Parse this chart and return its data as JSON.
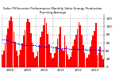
{
  "title": "Solar PV/Inverter Performance Monthly Solar Energy Production Running Average",
  "bar_color": "#ff0000",
  "avg_color": "#0000ff",
  "background_color": "#ffffff",
  "grid_color": "#b0b0b0",
  "values": [
    32,
    40,
    60,
    80,
    95,
    115,
    125,
    112,
    88,
    62,
    40,
    28,
    32,
    42,
    58,
    78,
    92,
    110,
    118,
    110,
    84,
    60,
    36,
    24,
    28,
    38,
    54,
    74,
    88,
    102,
    120,
    108,
    82,
    56,
    34,
    22,
    24,
    34,
    50,
    70,
    82,
    98,
    44,
    40,
    78,
    52,
    32,
    20,
    26,
    36,
    52,
    68,
    80,
    94,
    110,
    102,
    80,
    54,
    34,
    22,
    24,
    32,
    50,
    65,
    78,
    90,
    108,
    30,
    34,
    50,
    30,
    20
  ],
  "running_avg": [
    68,
    68,
    67,
    66,
    65,
    64,
    63,
    62,
    61,
    60,
    59,
    58,
    57,
    56,
    56,
    55,
    55,
    55,
    55,
    55,
    55,
    55,
    54,
    54,
    53,
    52,
    52,
    51,
    51,
    51,
    51,
    51,
    51,
    50,
    50,
    49,
    49,
    48,
    48,
    47,
    47,
    47,
    46,
    46,
    46,
    46,
    46,
    45,
    45,
    45,
    44,
    44,
    44,
    44,
    44,
    44,
    44,
    44,
    44,
    43,
    43,
    43,
    43,
    43,
    43,
    43,
    43,
    42,
    42,
    42,
    41,
    41
  ],
  "ylim": [
    0,
    130
  ],
  "yticks": [
    0,
    20,
    40,
    60,
    80,
    100,
    120
  ],
  "ytick_labels": [
    "0",
    "20",
    "40",
    "60",
    "80",
    "100",
    "120"
  ],
  "n_bars": 72,
  "year_positions": [
    0,
    12,
    24,
    36,
    48,
    60
  ],
  "year_labels": [
    "2008",
    "2009",
    "2010",
    "2011",
    "2012",
    "2013"
  ]
}
